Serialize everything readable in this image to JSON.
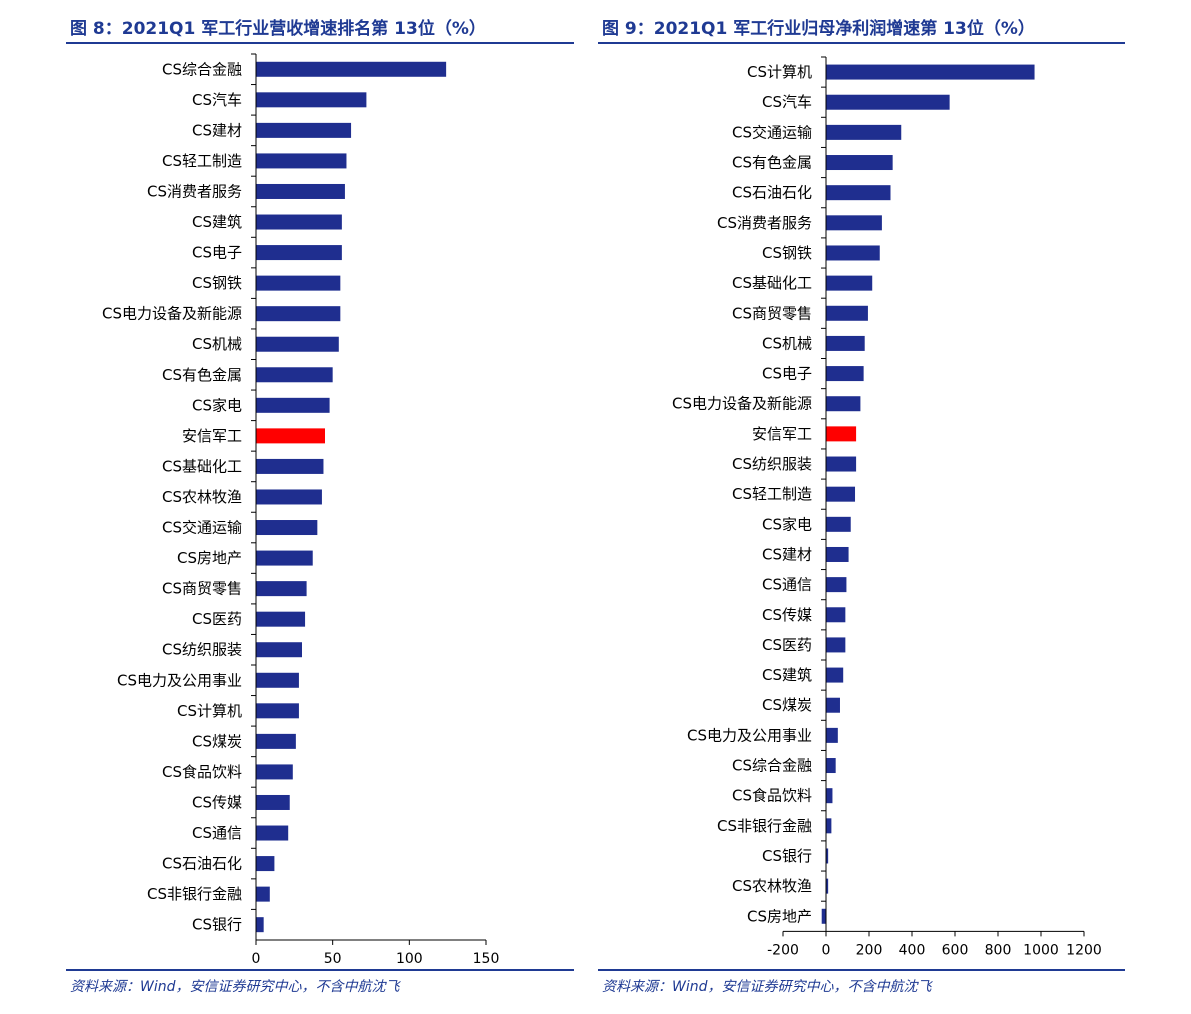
{
  "figures": [
    {
      "title": "图 8：2021Q1 军工行业营收增速排名第 13位（%）",
      "source": "资料来源：Wind，安信证券研究中心，不含中航沈飞"
    },
    {
      "title": "图 9：2021Q1 军工行业归母净利润增速第 13位（%）",
      "source": "资料来源：Wind，安信证券研究中心，不含中航沈飞"
    }
  ],
  "colors": {
    "bar": "#1f2e8f",
    "highlight": "#ff0000",
    "accent": "#1f3a93"
  },
  "chart_data": [
    {
      "type": "bar",
      "orientation": "horizontal",
      "title": "图 8：2021Q1 军工行业营收增速排名第 13位（%）",
      "categories": [
        "CS综合金融",
        "CS汽车",
        "CS建材",
        "CS轻工制造",
        "CS消费者服务",
        "CS建筑",
        "CS电子",
        "CS钢铁",
        "CS电力设备及新能源",
        "CS机械",
        "CS有色金属",
        "CS家电",
        "安信军工",
        "CS基础化工",
        "CS农林牧渔",
        "CS交通运输",
        "CS房地产",
        "CS商贸零售",
        "CS医药",
        "CS纺织服装",
        "CS电力及公用事业",
        "CS计算机",
        "CS煤炭",
        "CS食品饮料",
        "CS传媒",
        "CS通信",
        "CS石油石化",
        "CS非银行金融",
        "CS银行"
      ],
      "values": [
        124,
        72,
        62,
        59,
        58,
        56,
        56,
        55,
        55,
        54,
        50,
        48,
        45,
        44,
        43,
        40,
        37,
        33,
        32,
        30,
        28,
        28,
        26,
        24,
        22,
        21,
        12,
        9,
        5
      ],
      "highlight": "安信军工",
      "xlim": [
        0,
        150
      ],
      "xticks": [
        0,
        50,
        100,
        150
      ],
      "grid": false
    },
    {
      "type": "bar",
      "orientation": "horizontal",
      "title": "图 9：2021Q1 军工行业归母净利润增速第 13位（%）",
      "categories": [
        "CS计算机",
        "CS汽车",
        "CS交通运输",
        "CS有色金属",
        "CS石油石化",
        "CS消费者服务",
        "CS钢铁",
        "CS基础化工",
        "CS商贸零售",
        "CS机械",
        "CS电子",
        "CS电力设备及新能源",
        "安信军工",
        "CS纺织服装",
        "CS轻工制造",
        "CS家电",
        "CS建材",
        "CS通信",
        "CS传媒",
        "CS医药",
        "CS建筑",
        "CS煤炭",
        "CS电力及公用事业",
        "CS综合金融",
        "CS食品饮料",
        "CS非银行金融",
        "CS银行",
        "CS农林牧渔",
        "CS房地产"
      ],
      "values": [
        970,
        575,
        350,
        310,
        300,
        260,
        250,
        215,
        195,
        180,
        175,
        160,
        140,
        140,
        135,
        115,
        105,
        95,
        90,
        90,
        80,
        65,
        55,
        45,
        30,
        25,
        10,
        10,
        -20
      ],
      "highlight": "安信军工",
      "xlim": [
        -200,
        1200
      ],
      "xticks": [
        -200,
        0,
        200,
        400,
        600,
        800,
        1000,
        1200
      ],
      "grid": false
    }
  ]
}
